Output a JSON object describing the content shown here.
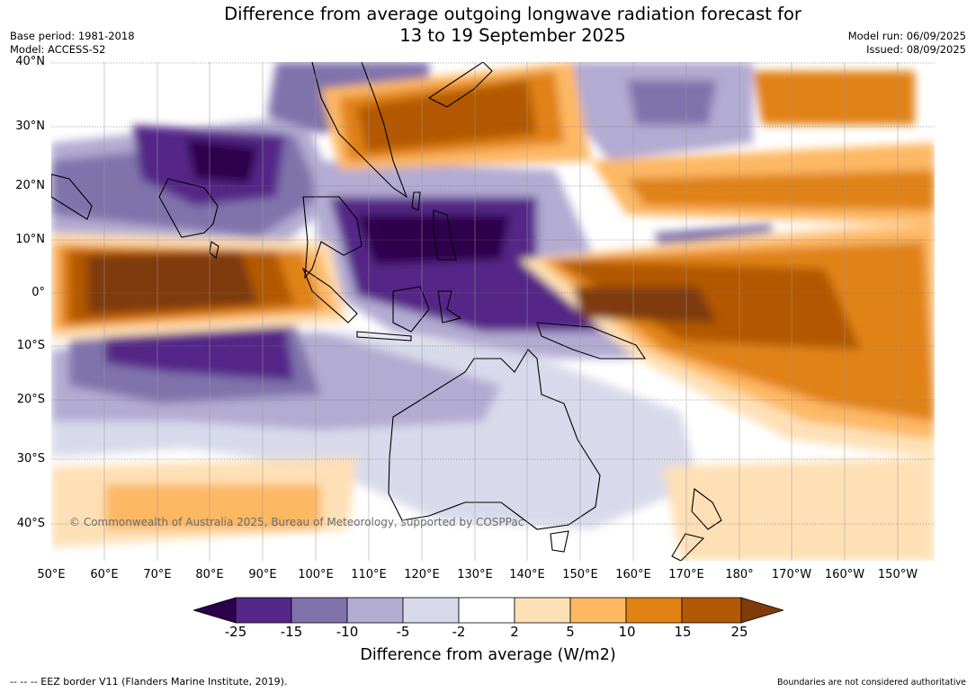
{
  "header": {
    "title_line1": "Difference from average outgoing longwave radiation forecast for",
    "title_line2": "13 to 19 September 2025",
    "base_period": "Base period: 1981-2018",
    "model": "Model: ACCESS-S2",
    "model_run": "Model run: 06/09/2025",
    "issued": "Issued: 08/09/2025"
  },
  "map": {
    "copyright": "© Commonwealth of Australia 2025, Bureau of Meteorology, supported by COSPPac",
    "extent": {
      "lon_min": 50,
      "lon_max": 217,
      "lat_min": -47,
      "lat_max": 40
    },
    "lat_labels": [
      "40°N",
      "30°N",
      "20°N",
      "10°N",
      "0°",
      "10°S",
      "20°S",
      "30°S",
      "40°S"
    ],
    "lat_values": [
      40,
      30,
      20,
      10,
      0,
      -10,
      -20,
      -30,
      -40
    ],
    "lon_labels": [
      "50°E",
      "60°E",
      "70°E",
      "80°E",
      "90°E",
      "100°E",
      "110°E",
      "120°E",
      "130°E",
      "140°E",
      "150°E",
      "160°E",
      "170°E",
      "180°",
      "170°W",
      "160°W",
      "150°W"
    ],
    "lon_values": [
      50,
      60,
      70,
      80,
      90,
      100,
      110,
      120,
      130,
      140,
      150,
      160,
      170,
      180,
      190,
      200,
      210
    ]
  },
  "colorbar": {
    "label": "Difference from average (W/m2)",
    "ticks": [
      "-25",
      "-15",
      "-10",
      "-5",
      "-2",
      "2",
      "5",
      "10",
      "15",
      "25"
    ],
    "colors": [
      "#2d004b",
      "#542788",
      "#8073ac",
      "#b2abd2",
      "#d8daeb",
      "#ffffff",
      "#fee0b6",
      "#fdb863",
      "#e08214",
      "#b35806",
      "#7f3b08"
    ]
  },
  "footer": {
    "eez_note": "--  --  -- EEZ border V11 (Flanders Marine Institute, 2019).",
    "disclaimer": "Boundaries are not considered authoritative"
  }
}
